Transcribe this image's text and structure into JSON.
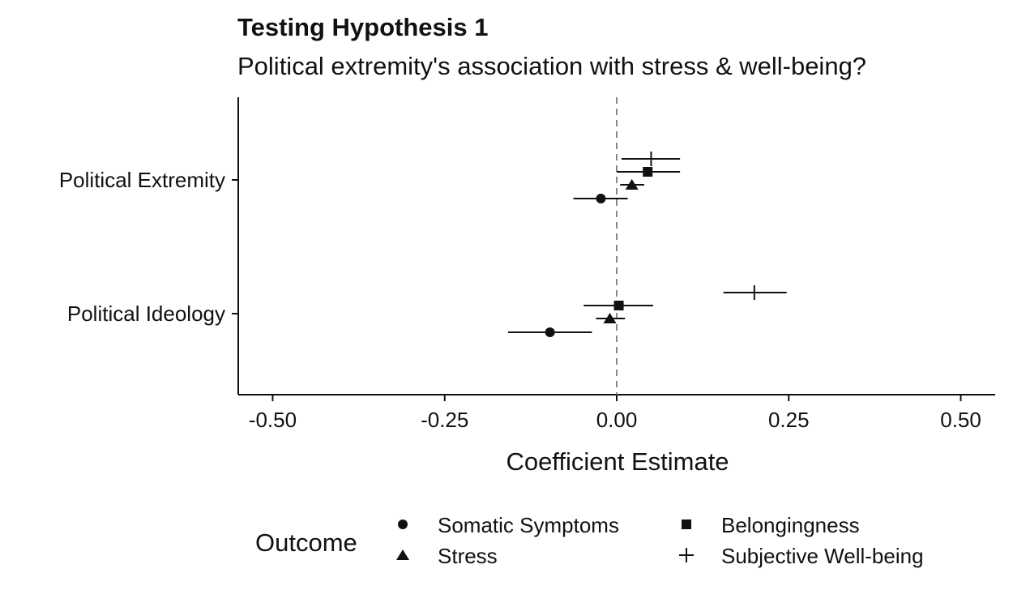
{
  "chart_data": {
    "type": "scatter",
    "title": "Testing Hypothesis 1",
    "subtitle": "Political extremity's association with stress & well-being?",
    "xlabel": "Coefficient Estimate",
    "ylabel": "",
    "xlim": [
      -0.55,
      0.55
    ],
    "x_ticks": [
      "-0.50",
      "-0.25",
      "0.00",
      "0.25",
      "0.50"
    ],
    "x_tick_values": [
      -0.5,
      -0.25,
      0.0,
      0.25,
      0.5
    ],
    "categories": [
      "Political Extremity",
      "Political Ideology"
    ],
    "reference_line": {
      "x": 0,
      "style": "dashed"
    },
    "grid": false,
    "legend": {
      "title": "Outcome",
      "position": "bottom",
      "entries": [
        {
          "label": "Somatic Symptoms",
          "shape": "circle"
        },
        {
          "label": "Stress",
          "shape": "triangle"
        },
        {
          "label": "Belongingness",
          "shape": "square"
        },
        {
          "label": "Subjective Well-being",
          "shape": "plus"
        }
      ]
    },
    "series": [
      {
        "name": "Subjective Well-being",
        "shape": "plus",
        "points": [
          {
            "category": "Political Extremity",
            "estimate": 0.05,
            "ci_low": 0.007,
            "ci_high": 0.092
          },
          {
            "category": "Political Ideology",
            "estimate": 0.2,
            "ci_low": 0.155,
            "ci_high": 0.247
          }
        ]
      },
      {
        "name": "Belongingness",
        "shape": "square",
        "points": [
          {
            "category": "Political Extremity",
            "estimate": 0.045,
            "ci_low": 0.0,
            "ci_high": 0.092
          },
          {
            "category": "Political Ideology",
            "estimate": 0.003,
            "ci_low": -0.048,
            "ci_high": 0.053
          }
        ]
      },
      {
        "name": "Stress",
        "shape": "triangle",
        "points": [
          {
            "category": "Political Extremity",
            "estimate": 0.022,
            "ci_low": 0.005,
            "ci_high": 0.04
          },
          {
            "category": "Political Ideology",
            "estimate": -0.01,
            "ci_low": -0.03,
            "ci_high": 0.012
          }
        ]
      },
      {
        "name": "Somatic Symptoms",
        "shape": "circle",
        "points": [
          {
            "category": "Political Extremity",
            "estimate": -0.023,
            "ci_low": -0.063,
            "ci_high": 0.016
          },
          {
            "category": "Political Ideology",
            "estimate": -0.097,
            "ci_low": -0.158,
            "ci_high": -0.036
          }
        ]
      }
    ]
  }
}
